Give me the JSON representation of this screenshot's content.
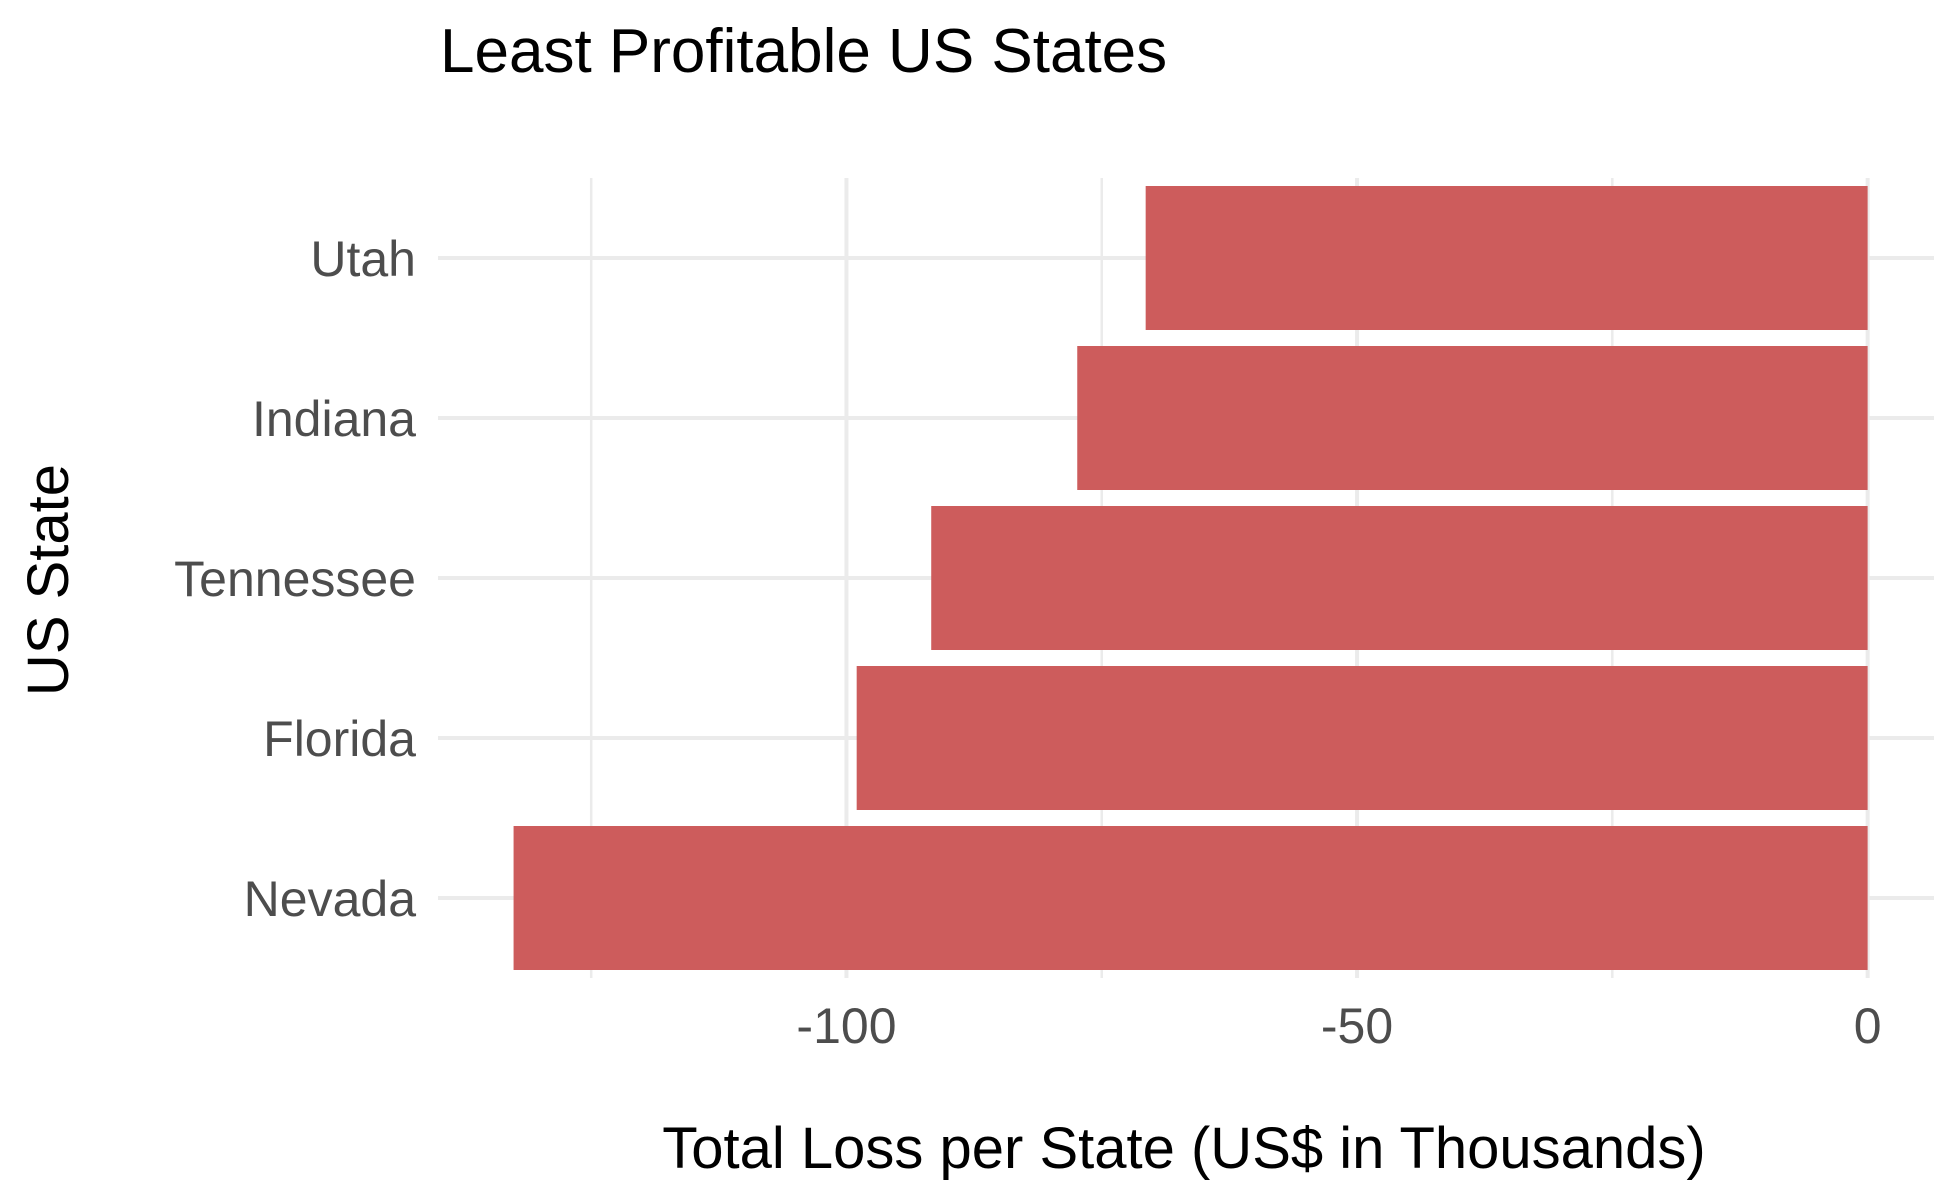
{
  "chart_data": {
    "type": "bar",
    "orientation": "horizontal",
    "title": "Least Profitable US States",
    "xlabel": "Total Loss per State (US$ in Thousands)",
    "ylabel": "US State",
    "categories": [
      "Nevada",
      "Florida",
      "Tennessee",
      "Indiana",
      "Utah"
    ],
    "values": [
      -132.6,
      -99.0,
      -91.7,
      -77.4,
      -70.7
    ],
    "xlim": [
      -140,
      6.5
    ],
    "x_ticks": [
      -100,
      -50,
      0
    ],
    "x_tick_labels": [
      "-100",
      "-50",
      "0"
    ],
    "x_minor_ticks": [
      -125,
      -75,
      -25
    ],
    "bar_color": "#cd5c5c",
    "grid": true,
    "legend": "none"
  }
}
